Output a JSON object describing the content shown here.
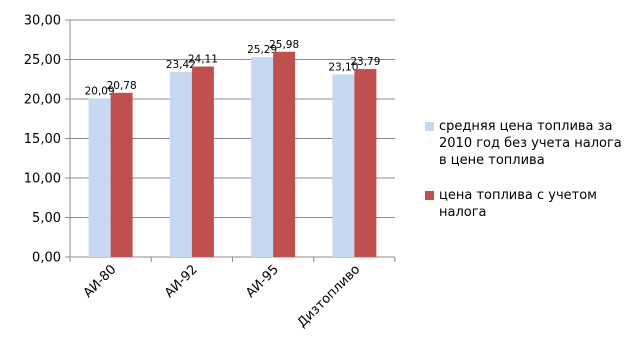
{
  "colors": {
    "series_1": "#c6d9f1",
    "series_2": "#c0504d",
    "gridline": "#8c8c8c",
    "axis": "#8c8c8c"
  },
  "chart_data": {
    "type": "bar",
    "categories": [
      "АИ-80",
      "АИ-92",
      "АИ-95",
      "Дизтопливо"
    ],
    "series": [
      {
        "name": "средняя цена топлива за 2010 год без учета налога в цене топлива",
        "values": [
          20.09,
          23.42,
          25.29,
          23.1
        ],
        "labels": [
          "20,09",
          "23,42",
          "25,29",
          "23,10"
        ]
      },
      {
        "name": "цена топлива с учетом налога",
        "values": [
          20.78,
          24.11,
          25.98,
          23.79
        ],
        "labels": [
          "20,78",
          "24,11",
          "25,98",
          "23,79"
        ]
      }
    ],
    "ylim": [
      0,
      30
    ],
    "yticks": [
      "0,00",
      "5,00",
      "10,00",
      "15,00",
      "20,00",
      "25,00",
      "30,00"
    ],
    "grid": true,
    "legend_position": "right",
    "title": "",
    "xlabel": "",
    "ylabel": ""
  }
}
